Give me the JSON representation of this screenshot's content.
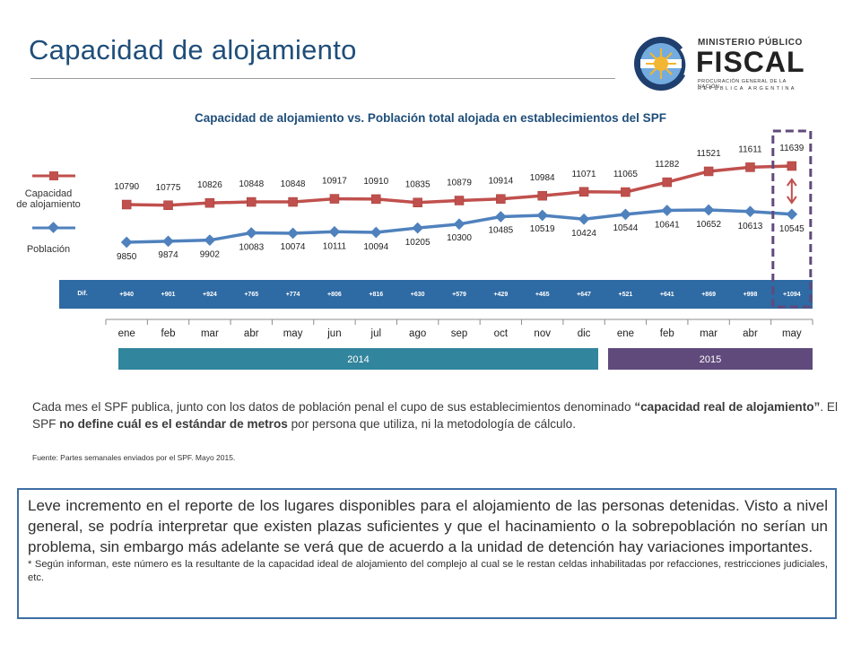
{
  "slide": {
    "title": "Capacidad de alojamiento"
  },
  "logo": {
    "line1": "MINISTERIO PÚBLICO",
    "line2": "FISCAL",
    "line3": "PROCURACIÓN GENERAL DE LA NACIÓN",
    "line4": "REPÚBLICA ARGENTINA",
    "icon": "sun-emblem-icon",
    "colors": {
      "navy": "#1f3f6e",
      "sky": "#74acdf",
      "sun": "#f2b632"
    }
  },
  "chart_data": {
    "type": "line",
    "title": "Capacidad de alojamiento vs. Población total alojada en establecimientos del SPF",
    "categories": [
      "ene",
      "feb",
      "mar",
      "abr",
      "may",
      "jun",
      "jul",
      "ago",
      "sep",
      "oct",
      "nov",
      "dic",
      "ene",
      "feb",
      "mar",
      "abr",
      "may"
    ],
    "series": [
      {
        "name": "Capacidad de alojamiento",
        "color": "#c0504d",
        "marker": "square",
        "values": [
          10790,
          10775,
          10826,
          10848,
          10848,
          10917,
          10910,
          10835,
          10879,
          10914,
          10984,
          11071,
          11065,
          11282,
          11521,
          11611,
          11639
        ]
      },
      {
        "name": "Población",
        "color": "#4f81bd",
        "marker": "diamond",
        "values": [
          9850,
          9874,
          9902,
          10083,
          10074,
          10111,
          10094,
          10205,
          10300,
          10485,
          10519,
          10424,
          10544,
          10641,
          10652,
          10613,
          10545
        ]
      }
    ],
    "diff_row": {
      "label": "Dif.",
      "values": [
        "+940",
        "+901",
        "+924",
        "+765",
        "+774",
        "+806",
        "+816",
        "+630",
        "+579",
        "+429",
        "+465",
        "+647",
        "+521",
        "+641",
        "+869",
        "+998",
        "+1094"
      ],
      "color": "#2e6aa3"
    },
    "year_bands": [
      {
        "label": "2014",
        "from": 0,
        "to": 11,
        "color": "#31859c"
      },
      {
        "label": "2015",
        "from": 12,
        "to": 16,
        "color": "#604a7b"
      }
    ],
    "highlight": {
      "index": 16,
      "color": "#604a7b",
      "arrow_color": "#c0504d"
    },
    "legend_placement": "left"
  },
  "legend": {
    "capacity_label_1": "Capacidad",
    "capacity_label_2": "de alojamiento",
    "population_label": "Población"
  },
  "body": {
    "p1": "Cada mes el SPF publica, junto con los datos de población penal el cupo de sus establecimientos denominado ",
    "p1_bold": "“capacidad real de alojamiento”",
    "p2": ". El SPF ",
    "p2_bold": "no define cuál es el estándar de metros",
    "p3": " por persona que utiliza, ni la metodología de cálculo.",
    "source": "Fuente: Partes semanales enviados por el SPF. Mayo 2015."
  },
  "note": {
    "main": "Leve incremento en el reporte de los lugares disponibles para el alojamiento de las personas detenidas. Visto a nivel general, se podría interpretar que existen plazas suficientes y que el hacinamiento o la sobrepoblación no serían un problema, sin embargo más adelante se verá que de acuerdo a la unidad de detención hay variaciones importantes.",
    "footnote": "* Según informan, este número es la resultante de la capacidad ideal de alojamiento del complejo al cual se le restan celdas inhabilitadas por refacciones, restricciones judiciales, etc."
  }
}
